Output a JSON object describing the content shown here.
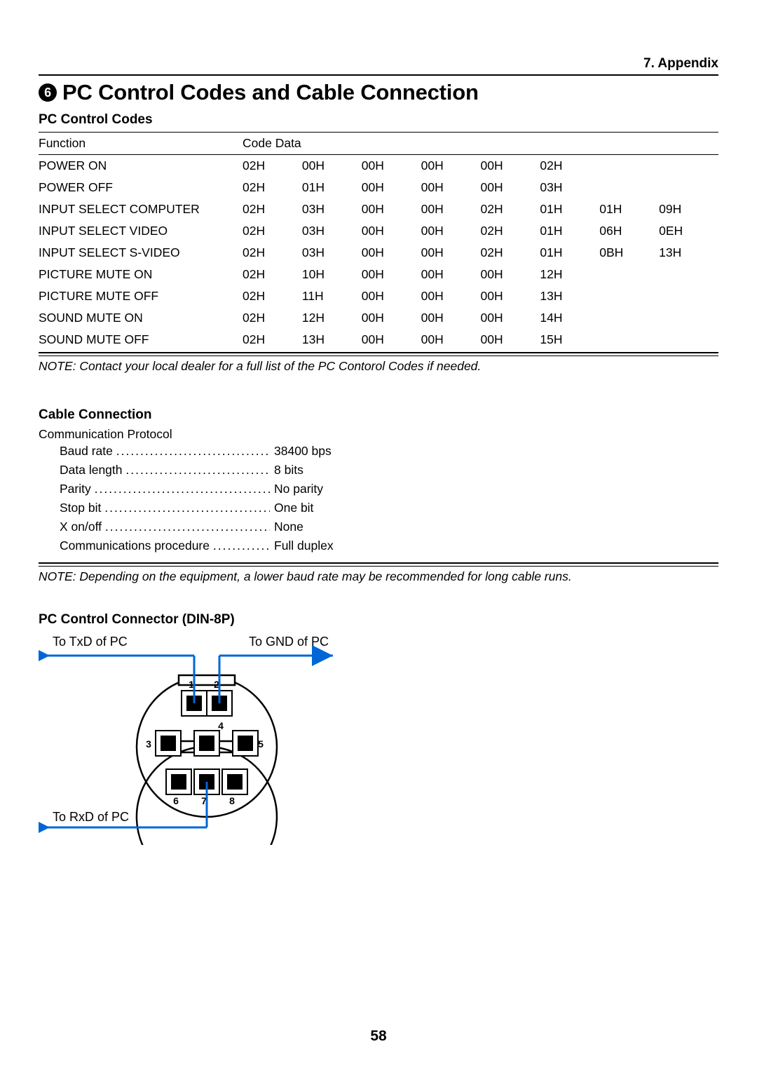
{
  "appendix_label": "7. Appendix",
  "section_number": "6",
  "main_title": "PC Control Codes and Cable Connection",
  "codes": {
    "heading": "PC Control Codes",
    "col_function": "Function",
    "col_codedata": "Code Data",
    "rows": [
      {
        "fn": "POWER ON",
        "c": [
          "02H",
          "00H",
          "00H",
          "00H",
          "00H",
          "02H",
          "",
          ""
        ]
      },
      {
        "fn": "POWER OFF",
        "c": [
          "02H",
          "01H",
          "00H",
          "00H",
          "00H",
          "03H",
          "",
          ""
        ]
      },
      {
        "fn": "INPUT SELECT COMPUTER",
        "c": [
          "02H",
          "03H",
          "00H",
          "00H",
          "02H",
          "01H",
          "01H",
          "09H"
        ]
      },
      {
        "fn": "INPUT SELECT VIDEO",
        "c": [
          "02H",
          "03H",
          "00H",
          "00H",
          "02H",
          "01H",
          "06H",
          "0EH"
        ]
      },
      {
        "fn": "INPUT SELECT S-VIDEO",
        "c": [
          "02H",
          "03H",
          "00H",
          "00H",
          "02H",
          "01H",
          "0BH",
          "13H"
        ]
      },
      {
        "fn": "PICTURE MUTE ON",
        "c": [
          "02H",
          "10H",
          "00H",
          "00H",
          "00H",
          "12H",
          "",
          ""
        ]
      },
      {
        "fn": "PICTURE MUTE OFF",
        "c": [
          "02H",
          "11H",
          "00H",
          "00H",
          "00H",
          "13H",
          "",
          ""
        ]
      },
      {
        "fn": "SOUND MUTE ON",
        "c": [
          "02H",
          "12H",
          "00H",
          "00H",
          "00H",
          "14H",
          "",
          ""
        ]
      },
      {
        "fn": "SOUND MUTE OFF",
        "c": [
          "02H",
          "13H",
          "00H",
          "00H",
          "00H",
          "15H",
          "",
          ""
        ]
      }
    ],
    "note": "NOTE: Contact your local dealer for a full list of the PC Contorol Codes if needed."
  },
  "cable": {
    "heading": "Cable Connection",
    "protocol_label": "Communication Protocol",
    "items": [
      {
        "label": "Baud rate",
        "value": "38400 bps"
      },
      {
        "label": "Data length",
        "value": "8 bits"
      },
      {
        "label": "Parity",
        "value": "No parity"
      },
      {
        "label": "Stop bit",
        "value": "One bit"
      },
      {
        "label": "X on/off",
        "value": "None"
      },
      {
        "label": "Communications procedure",
        "value": "Full duplex"
      }
    ],
    "note": "NOTE: Depending on the equipment, a lower baud rate may be recommended for long cable runs."
  },
  "connector": {
    "heading": "PC Control Connector (DIN-8P)",
    "label_txd": "To TxD of PC",
    "label_gnd": "To GND of PC",
    "label_rxd": "To RxD of PC",
    "pin_labels": [
      "1",
      "2",
      "3",
      "4",
      "5",
      "6",
      "7",
      "8"
    ],
    "arrow_color": "#0066d6",
    "line_color": "#0066d6",
    "connector_stroke": "#000000"
  },
  "page_number": "58"
}
